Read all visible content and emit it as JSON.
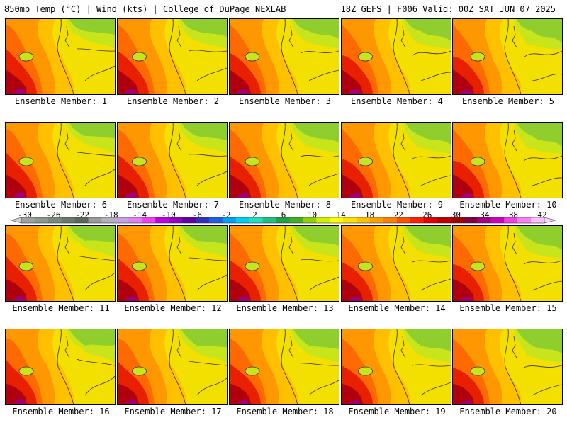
{
  "header": {
    "left_title": "850mb Temp (°C) | Wind (kts) | College of DuPage NEXLAB",
    "right_title": "18Z GEFS | F006 Valid: 00Z SAT JUN 07 2025"
  },
  "members": [
    "Ensemble Member: 1",
    "Ensemble Member: 2",
    "Ensemble Member: 3",
    "Ensemble Member: 4",
    "Ensemble Member: 5",
    "Ensemble Member: 6",
    "Ensemble Member: 7",
    "Ensemble Member: 8",
    "Ensemble Member: 9",
    "Ensemble Member: 10",
    "Ensemble Member: 11",
    "Ensemble Member: 12",
    "Ensemble Member: 13",
    "Ensemble Member: 14",
    "Ensemble Member: 15",
    "Ensemble Member: 16",
    "Ensemble Member: 17",
    "Ensemble Member: 18",
    "Ensemble Member: 19",
    "Ensemble Member: 20"
  ],
  "colorbar": {
    "labels": [
      "-30",
      "-26",
      "-22",
      "-18",
      "-14",
      "-10",
      "-6",
      "-2",
      "2",
      "6",
      "10",
      "14",
      "18",
      "22",
      "26",
      "30",
      "34",
      "38",
      "42"
    ],
    "colors": [
      "#a0a0a0",
      "#8a9a8a",
      "#7a8a7a",
      "#6a7a6a",
      "#5a6a5a",
      "#9a9a9a",
      "#b0b0c0",
      "#c8a0e0",
      "#e080f0",
      "#f040f0",
      "#c000e0",
      "#9000c0",
      "#6000a0",
      "#3030c0",
      "#2060e0",
      "#00a0f0",
      "#00d0f0",
      "#20e0c0",
      "#20c080",
      "#20a040",
      "#40b020",
      "#90d000",
      "#d0f000",
      "#ffff00",
      "#ffe000",
      "#ffc000",
      "#ffa000",
      "#ff8000",
      "#ff5000",
      "#ff2000",
      "#e00000",
      "#c00000",
      "#a00000",
      "#800040",
      "#a00080",
      "#d000c0",
      "#f040e0",
      "#ff80f0",
      "#ffc0ff"
    ]
  },
  "map_colors": {
    "green": "#8fce2c",
    "yellow_green": "#c8e41a",
    "yellow": "#f4e000",
    "orange_light": "#ffc000",
    "orange": "#ff9800",
    "orange_dark": "#ff6a00",
    "red": "#e82000",
    "dark_red": "#b00010",
    "magenta": "#a00070"
  }
}
